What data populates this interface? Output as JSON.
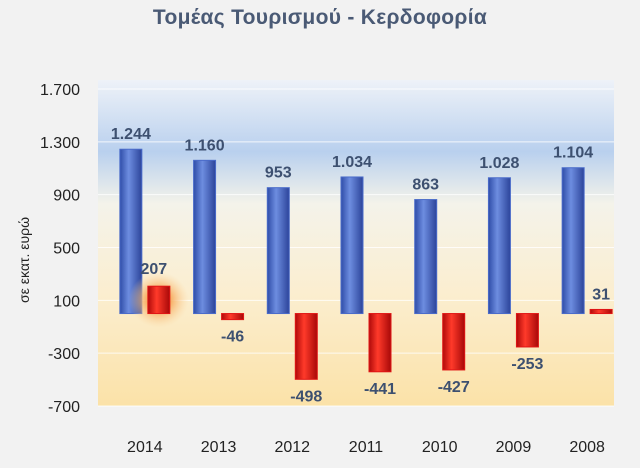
{
  "chart_data": {
    "type": "bar",
    "title": "Τομέας Τουρισμού - Κερδοφορία",
    "ylabel": "σε εκατ. ευρώ",
    "xlabel": "",
    "categories": [
      "2014",
      "2013",
      "2012",
      "2011",
      "2010",
      "2009",
      "2008"
    ],
    "series": [
      {
        "values": [
          1244,
          1160,
          953,
          1034,
          863,
          1028,
          1104
        ]
      },
      {
        "values": [
          207,
          -46,
          -498,
          -441,
          -427,
          -253,
          31
        ]
      }
    ],
    "value_labels": [
      [
        "1.244",
        "1.160",
        "953",
        "1.034",
        "863",
        "1.028",
        "1.104"
      ],
      [
        "207",
        "-46",
        "-498",
        "-441",
        "-427",
        "-253",
        "31"
      ]
    ],
    "ylim": [
      -700,
      1700
    ],
    "yticks": [
      1700,
      1300,
      900,
      500,
      100,
      -300,
      -700
    ],
    "ytick_labels": [
      "1.700",
      "1.300",
      "900",
      "500",
      "100",
      "-300",
      "-700"
    ],
    "grid": true,
    "legend": "none",
    "colors": {
      "series1": "#4a6bc9",
      "series2": "#e01515",
      "highlight_glow": "#f5a04a"
    }
  }
}
